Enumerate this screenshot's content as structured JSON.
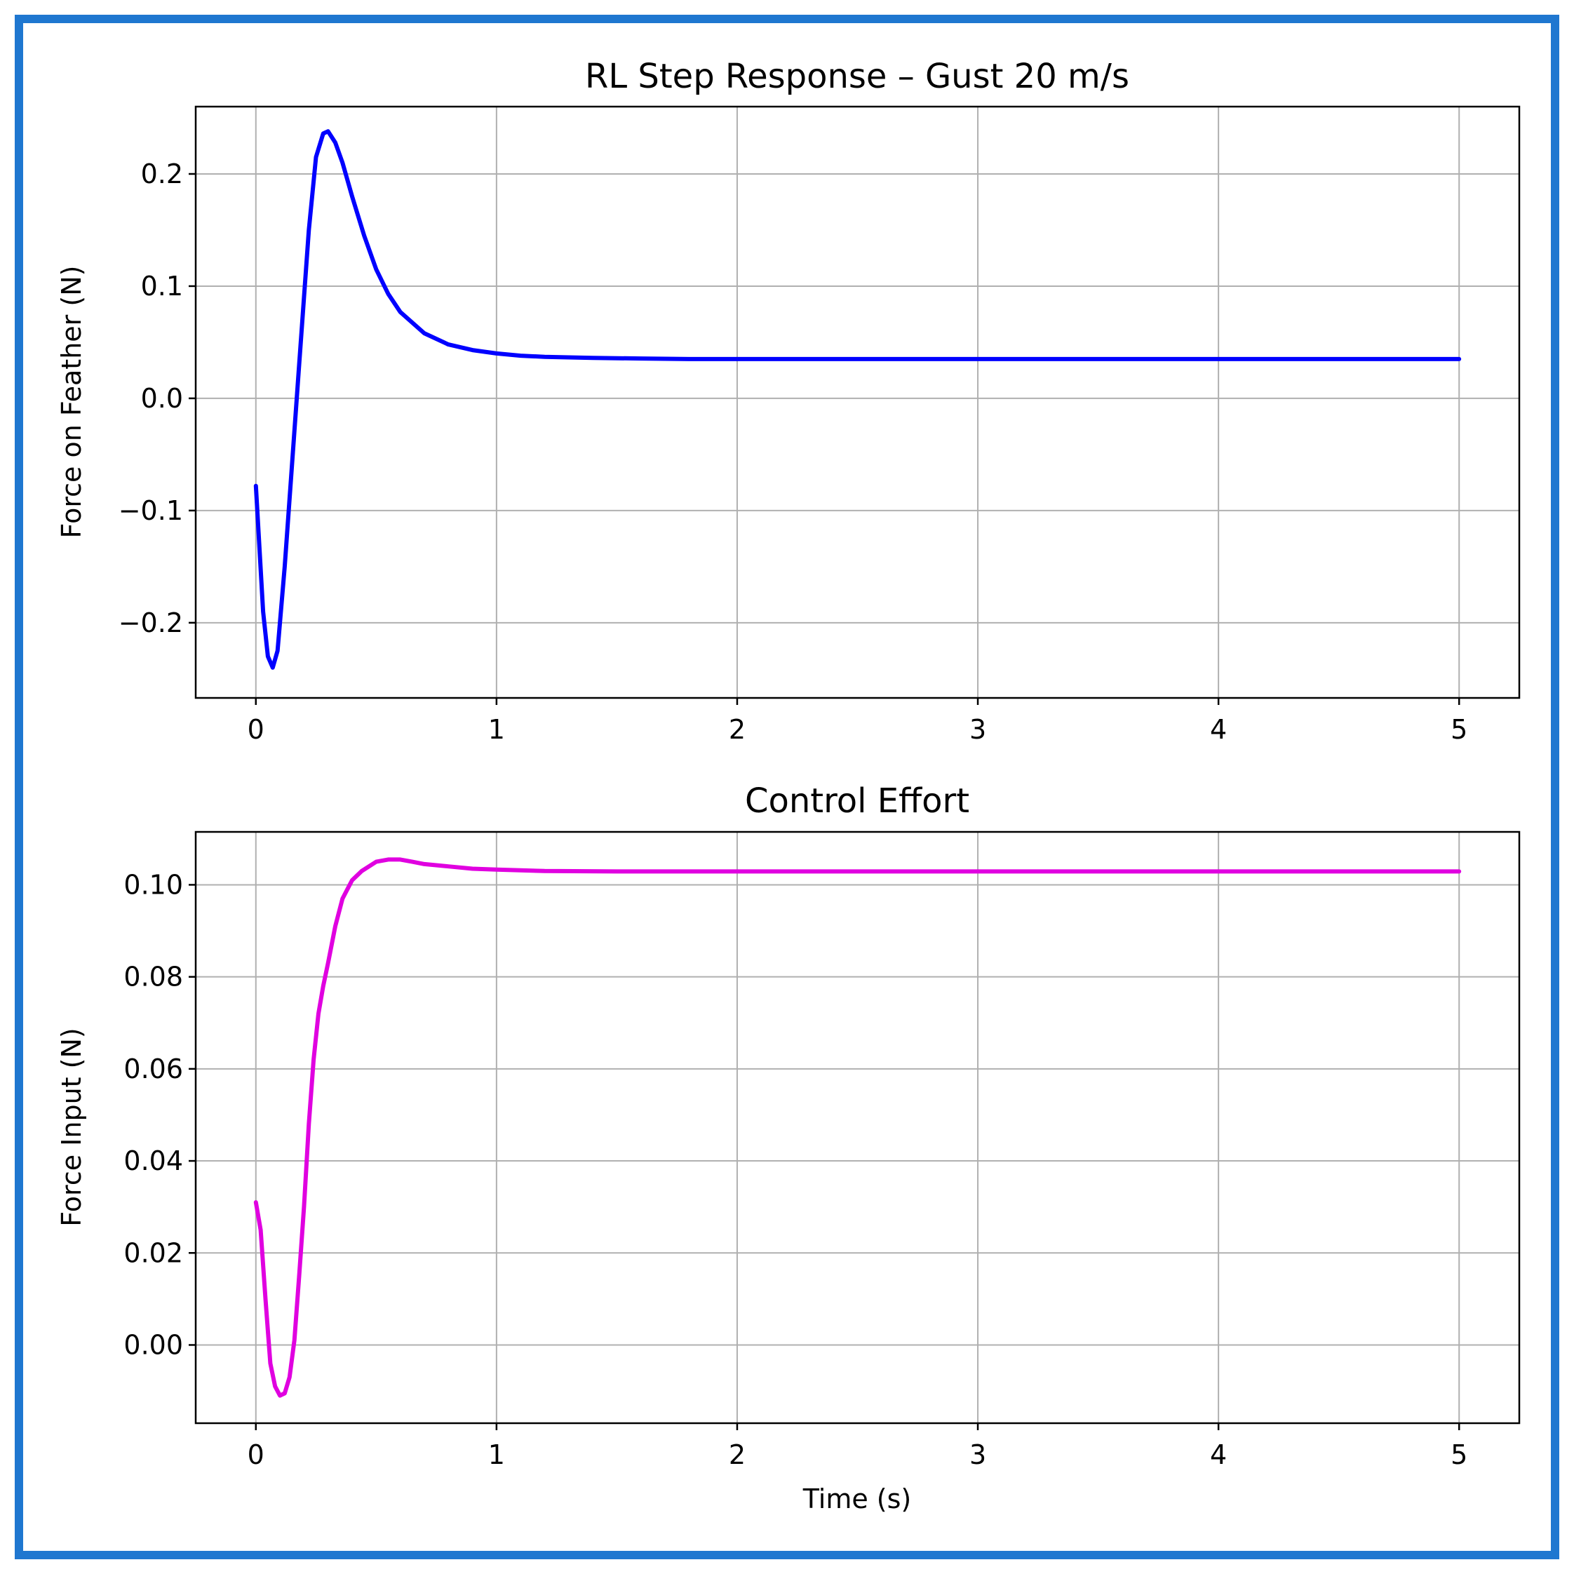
{
  "figure": {
    "border_color": "#1f77d0"
  },
  "chart_data": [
    {
      "type": "line",
      "title": "RL Step Response – Gust 20 m/s",
      "xlabel": "",
      "ylabel": "Force on Feather (N)",
      "xlim": [
        -0.25,
        5.25
      ],
      "ylim": [
        -0.267,
        0.26
      ],
      "xticks": [
        0,
        1,
        2,
        3,
        4,
        5
      ],
      "xtick_labels": [
        "0",
        "1",
        "2",
        "3",
        "4",
        "5"
      ],
      "yticks": [
        -0.2,
        -0.1,
        0.0,
        0.1,
        0.2
      ],
      "ytick_labels": [
        "−0.2",
        "−0.1",
        "0.0",
        "0.1",
        "0.2"
      ],
      "grid": true,
      "series": [
        {
          "color": "#0000ff",
          "x": [
            0,
            0.03,
            0.05,
            0.07,
            0.09,
            0.12,
            0.15,
            0.18,
            0.2,
            0.22,
            0.25,
            0.28,
            0.3,
            0.33,
            0.36,
            0.4,
            0.45,
            0.5,
            0.55,
            0.6,
            0.7,
            0.8,
            0.9,
            1.0,
            1.1,
            1.2,
            1.4,
            1.6,
            1.8,
            2.0,
            2.5,
            3.0,
            3.5,
            4.0,
            4.5,
            5.0
          ],
          "y": [
            -0.078,
            -0.19,
            -0.23,
            -0.24,
            -0.225,
            -0.15,
            -0.06,
            0.03,
            0.09,
            0.15,
            0.215,
            0.236,
            0.238,
            0.228,
            0.21,
            0.18,
            0.145,
            0.115,
            0.093,
            0.077,
            0.058,
            0.048,
            0.043,
            0.04,
            0.038,
            0.037,
            0.036,
            0.0355,
            0.035,
            0.035,
            0.035,
            0.035,
            0.035,
            0.035,
            0.035,
            0.035
          ]
        }
      ]
    },
    {
      "type": "line",
      "title": "Control Effort",
      "xlabel": "Time (s)",
      "ylabel": "Force Input (N)",
      "xlim": [
        -0.25,
        5.25
      ],
      "ylim": [
        -0.017,
        0.1115
      ],
      "xticks": [
        0,
        1,
        2,
        3,
        4,
        5
      ],
      "xtick_labels": [
        "0",
        "1",
        "2",
        "3",
        "4",
        "5"
      ],
      "yticks": [
        0.0,
        0.02,
        0.04,
        0.06,
        0.08,
        0.1
      ],
      "ytick_labels": [
        "0.00",
        "0.02",
        "0.04",
        "0.06",
        "0.08",
        "0.10"
      ],
      "grid": true,
      "series": [
        {
          "color": "#e000e0",
          "x": [
            0,
            0.02,
            0.04,
            0.06,
            0.08,
            0.1,
            0.12,
            0.14,
            0.16,
            0.18,
            0.2,
            0.22,
            0.24,
            0.26,
            0.28,
            0.3,
            0.33,
            0.36,
            0.4,
            0.44,
            0.5,
            0.55,
            0.6,
            0.65,
            0.7,
            0.8,
            0.9,
            1.0,
            1.2,
            1.5,
            2.0,
            3.0,
            4.0,
            5.0
          ],
          "y": [
            0.031,
            0.025,
            0.01,
            -0.004,
            -0.009,
            -0.011,
            -0.0105,
            -0.007,
            0.001,
            0.015,
            0.03,
            0.048,
            0.062,
            0.072,
            0.078,
            0.083,
            0.091,
            0.097,
            0.101,
            0.103,
            0.105,
            0.1055,
            0.1055,
            0.105,
            0.1045,
            0.104,
            0.1035,
            0.1033,
            0.103,
            0.1029,
            0.1029,
            0.1029,
            0.1029,
            0.1029
          ]
        }
      ]
    }
  ]
}
